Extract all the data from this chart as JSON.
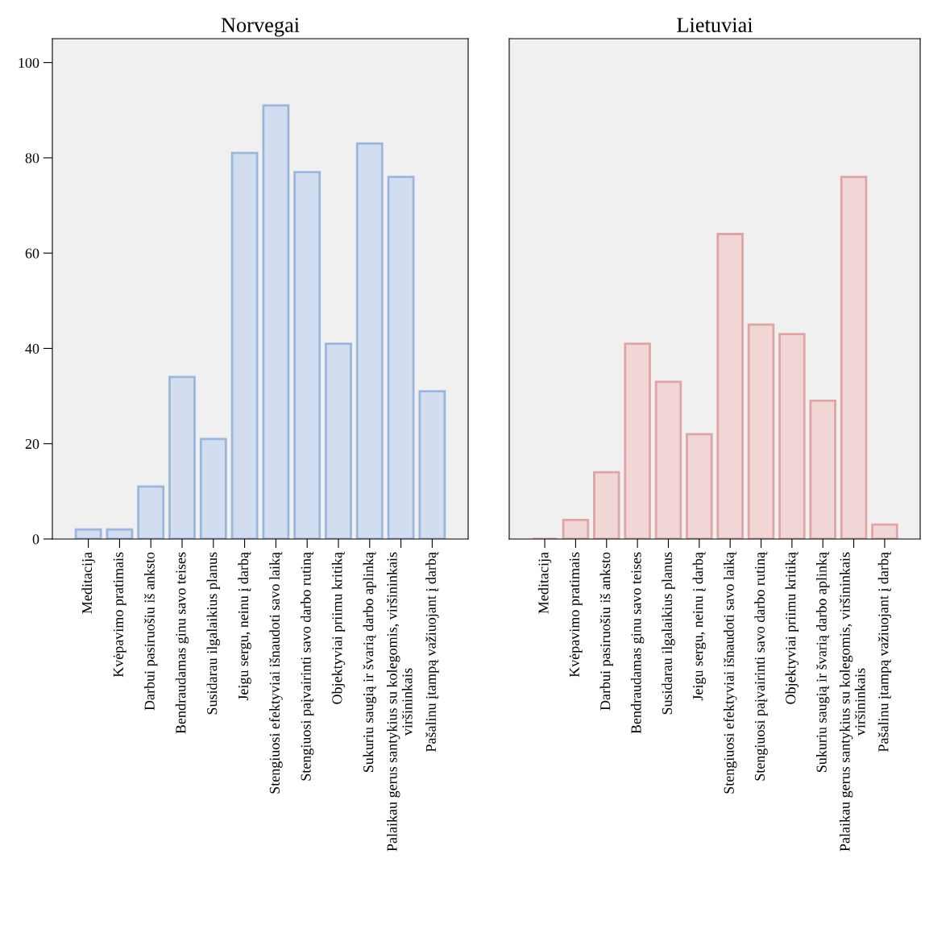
{
  "chart_data": [
    {
      "type": "bar",
      "title": "Norvegai",
      "categories": [
        "Meditacija",
        "Kvėpavimo pratimais",
        "Darbui pasiruošiu iš anksto",
        "Bendraudamas ginu savo teises",
        "Susidarau ilgalaikius planus",
        "Jeigu sergu, neinu į darbą",
        "Stengiuosi efektyviai išnaudoti savo laiką",
        "Stengiuosi paįvairinti savo darbo rutiną",
        "Objektyviai priimu kritiką",
        "Sukuriu saugią ir švarią darbo aplinką",
        "Palaikau gerus santykius su kolegomis, viršininkais\nviršininkais",
        "Pašalinu įtampą važiuojant į darbą"
      ],
      "values": [
        2,
        2,
        11,
        34,
        21,
        81,
        91,
        77,
        41,
        83,
        76,
        31
      ],
      "color": "#9ab6dc",
      "ylim": [
        0,
        105
      ],
      "yticks": [
        0,
        20,
        40,
        60,
        80,
        100
      ],
      "grid": false
    },
    {
      "type": "bar",
      "title": "Lietuviai",
      "categories": [
        "Meditacija",
        "Kvėpavimo pratimais",
        "Darbui pasiruošiu iš anksto",
        "Bendraudamas ginu savo teises",
        "Susidarau ilgalaikius planus",
        "Jeigu sergu, neinu į darbą",
        "Stengiuosi efektyviai išnaudoti savo laiką",
        "Stengiuosi paįvairinti savo darbo rutiną",
        "Objektyviai priimu kritiką",
        "Sukuriu saugią ir švarią darbo aplinką",
        "Palaikau gerus santykius su kolegomis, viršininkais\nviršininkais",
        "Pašalinu įtampą važiuojant į darbą"
      ],
      "values": [
        0,
        4,
        14,
        41,
        33,
        22,
        64,
        45,
        43,
        29,
        76,
        3
      ],
      "color": "#e0a4a4",
      "ylim": [
        0,
        105
      ],
      "yticks": [
        0,
        20,
        40,
        60,
        80,
        100
      ],
      "grid": false,
      "tick_labels": "x"
    }
  ]
}
